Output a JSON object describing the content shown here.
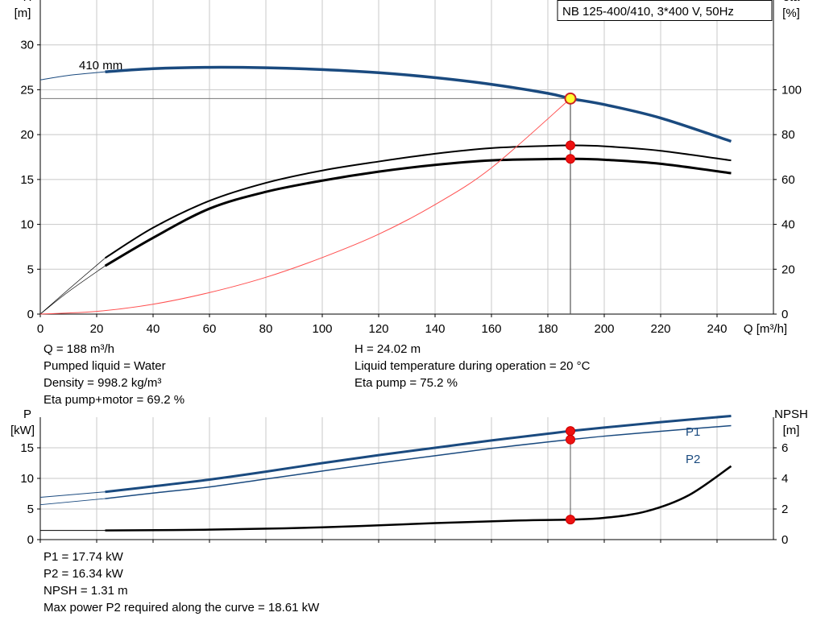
{
  "chart_data": [
    {
      "type": "line",
      "title_box": "NB 125-400/410, 3*400 V, 50Hz",
      "xlabel": "Q [m³/h]",
      "ylabel_left": [
        "H",
        "[m]"
      ],
      "ylabel_right": [
        "eta",
        "[%]"
      ],
      "xlim": [
        0,
        260
      ],
      "ylim_left": [
        0,
        35
      ],
      "ylim_right": [
        0,
        140
      ],
      "x_ticks": [
        0,
        20,
        40,
        60,
        80,
        100,
        120,
        140,
        160,
        180,
        200,
        220,
        240
      ],
      "y_ticks_left": [
        0,
        5,
        10,
        15,
        20,
        25,
        30
      ],
      "y_ticks_right": [
        0,
        20,
        40,
        60,
        80,
        100
      ],
      "grid": true,
      "curve_label": "410 mm",
      "series": [
        {
          "id": "H-extended",
          "axis": "left",
          "color": "#1a4a7f",
          "width": 1,
          "x": [
            0,
            10,
            23
          ],
          "y": [
            26.1,
            26.6,
            27.0
          ]
        },
        {
          "id": "H",
          "axis": "left",
          "color": "#1a4a7f",
          "width": 3.5,
          "x": [
            23,
            40,
            60,
            80,
            100,
            120,
            140,
            160,
            180,
            188,
            200,
            220,
            245
          ],
          "y": [
            27.0,
            27.35,
            27.5,
            27.45,
            27.25,
            26.9,
            26.35,
            25.6,
            24.6,
            24.02,
            23.35,
            21.85,
            19.25
          ]
        },
        {
          "id": "eta-pump-extended",
          "axis": "right",
          "color": "#000000",
          "width": 0.7,
          "x": [
            0,
            10,
            23
          ],
          "y": [
            0,
            11,
            25
          ]
        },
        {
          "id": "eta-pump",
          "axis": "right",
          "color": "#000000",
          "width": 2,
          "x": [
            23,
            40,
            60,
            80,
            100,
            120,
            140,
            160,
            180,
            188,
            200,
            220,
            245
          ],
          "y": [
            25,
            38.5,
            50.5,
            58.5,
            64,
            68,
            71.5,
            74,
            75.0,
            75.2,
            74.8,
            72.8,
            68.5
          ]
        },
        {
          "id": "eta-total-extended",
          "axis": "right",
          "color": "#000000",
          "width": 0.7,
          "x": [
            0,
            10,
            23
          ],
          "y": [
            0,
            10,
            21.5
          ]
        },
        {
          "id": "eta-total",
          "axis": "right",
          "color": "#000000",
          "width": 3,
          "x": [
            23,
            40,
            60,
            80,
            100,
            120,
            140,
            160,
            180,
            188,
            200,
            220,
            245
          ],
          "y": [
            21.5,
            34,
            47,
            54.5,
            59.5,
            63.5,
            66.5,
            68.5,
            69.1,
            69.2,
            68.8,
            67.0,
            62.8
          ]
        },
        {
          "id": "system-curve",
          "axis": "left",
          "color": "#ff5050",
          "width": 1,
          "x": [
            0,
            20,
            40,
            60,
            80,
            100,
            120,
            140,
            160,
            188
          ],
          "y": [
            0,
            0.3,
            1.1,
            2.4,
            4.1,
            6.3,
            8.9,
            12.2,
            16.3,
            24.02
          ]
        }
      ],
      "operating_point": {
        "x": 188,
        "y": 24.02
      },
      "marker_points": [
        {
          "x": 188,
          "y_right": 75.2
        },
        {
          "x": 188,
          "y_right": 69.2
        }
      ]
    },
    {
      "type": "line",
      "ylabel_left": [
        "P",
        "[kW]"
      ],
      "ylabel_right": [
        "NPSH",
        "[m]"
      ],
      "xlim": [
        0,
        260
      ],
      "ylim_left": [
        0,
        20
      ],
      "ylim_right": [
        0,
        8
      ],
      "y_ticks_left": [
        0,
        5,
        10,
        15
      ],
      "y_ticks_right": [
        0,
        2,
        4,
        6
      ],
      "grid": true,
      "series": [
        {
          "id": "P1-extended",
          "name": "P1",
          "axis": "left",
          "color": "#1a4a7f",
          "width": 1,
          "x": [
            0,
            23
          ],
          "y": [
            6.9,
            7.8
          ]
        },
        {
          "id": "P1",
          "name": "P1",
          "axis": "left",
          "color": "#1a4a7f",
          "width": 3,
          "x": [
            23,
            40,
            60,
            80,
            100,
            120,
            140,
            160,
            180,
            188,
            200,
            220,
            245
          ],
          "y": [
            7.8,
            8.7,
            9.8,
            11.1,
            12.5,
            13.8,
            15.0,
            16.2,
            17.3,
            17.74,
            18.3,
            19.2,
            20.2
          ]
        },
        {
          "id": "P2-extended",
          "name": "P2",
          "axis": "left",
          "color": "#1a4a7f",
          "width": 0.8,
          "x": [
            0,
            23
          ],
          "y": [
            5.7,
            6.7
          ]
        },
        {
          "id": "P2",
          "name": "P2",
          "axis": "left",
          "color": "#1a4a7f",
          "width": 1.5,
          "x": [
            23,
            40,
            60,
            80,
            100,
            120,
            140,
            160,
            180,
            188,
            200,
            220,
            245
          ],
          "y": [
            6.7,
            7.6,
            8.6,
            9.9,
            11.2,
            12.5,
            13.7,
            14.9,
            15.95,
            16.34,
            16.9,
            17.7,
            18.61
          ]
        },
        {
          "id": "NPSH-extended",
          "axis": "right",
          "color": "#000000",
          "width": 1,
          "x": [
            0,
            23
          ],
          "y": [
            0.6,
            0.6
          ]
        },
        {
          "id": "NPSH",
          "axis": "right",
          "color": "#000000",
          "width": 2.5,
          "x": [
            23,
            60,
            100,
            140,
            170,
            188,
            200,
            215,
            230,
            245
          ],
          "y": [
            0.6,
            0.65,
            0.8,
            1.08,
            1.25,
            1.31,
            1.42,
            1.85,
            2.9,
            4.8
          ]
        }
      ],
      "marker_points": [
        {
          "x": 188,
          "y_left": 17.74
        },
        {
          "x": 188,
          "y_left": 16.34
        },
        {
          "x": 188,
          "y_right": 1.31
        }
      ]
    }
  ],
  "readout_left": [
    "Q = 188 m³/h",
    "Pumped liquid = Water",
    "Density = 998.2 kg/m³",
    "Eta pump+motor = 69.2 %"
  ],
  "readout_right": [
    "H = 24.02 m",
    "Liquid temperature during operation = 20 °C",
    "Eta pump = 75.2 %"
  ],
  "readout_bottom": [
    "P1 = 17.74 kW",
    "P2 = 16.34 kW",
    "NPSH = 1.31 m",
    "Max power P2 required along the curve = 18.61 kW"
  ]
}
